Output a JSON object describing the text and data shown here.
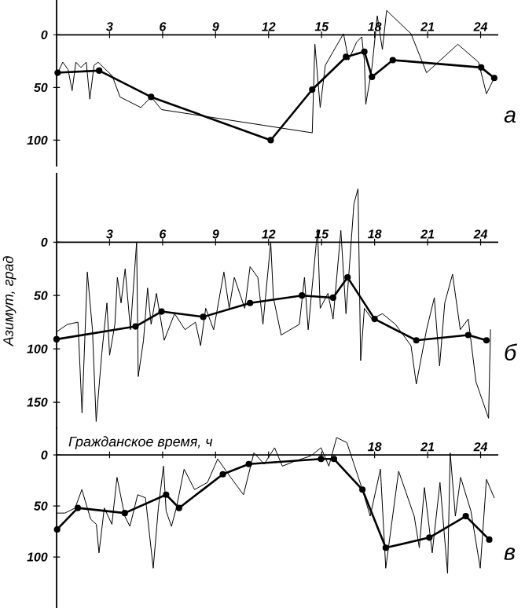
{
  "chart_data": [
    {
      "type": "line",
      "xlim": [
        0,
        25
      ],
      "ylim": [
        125,
        -33
      ],
      "xticks": [
        3,
        6,
        9,
        12,
        15,
        18,
        21,
        24
      ],
      "yticks": [
        0,
        50,
        100
      ],
      "annotations": [
        "а"
      ],
      "series": [
        {
          "color": "#000000",
          "marker": "none",
          "x": [
            0.06,
            0.35,
            0.65,
            0.88,
            1.09,
            1.38,
            1.68,
            1.88,
            2.12,
            2.35,
            3.15,
            3.59,
            4.77,
            5.35,
            5.94,
            14.47,
            14.62,
            14.92,
            15.21,
            15.65,
            16.24,
            16.53,
            16.98,
            17.27,
            17.42,
            17.5,
            17.85,
            18.15,
            18.44,
            18.68,
            20.06,
            20.94,
            22.71,
            23.88,
            24.33,
            24.77
          ],
          "values": [
            36,
            26,
            33,
            53,
            26,
            31,
            26,
            61,
            29,
            26,
            39,
            59,
            69,
            59,
            71,
            93,
            9,
            69,
            29,
            16,
            -1,
            24,
            7,
            2,
            24,
            66,
            31,
            -18,
            14,
            -23,
            -1,
            36,
            9,
            26,
            56,
            41
          ]
        },
        {
          "color": "#000000",
          "marker": "circle",
          "x": [
            0.06,
            2.41,
            5.35,
            12.12,
            14.47,
            16.38,
            17.42,
            17.85,
            19.03,
            24.03,
            24.77
          ],
          "values": [
            36,
            34,
            59,
            100,
            52,
            21,
            16,
            40,
            24,
            31,
            41
          ]
        }
      ]
    },
    {
      "type": "line",
      "xlim": [
        0,
        25
      ],
      "ylim": [
        175,
        -65
      ],
      "xticks": [
        3,
        6,
        9,
        12,
        15,
        18,
        21,
        24
      ],
      "yticks": [
        0,
        50,
        100,
        150
      ],
      "ylabel": "Азимут, град",
      "annotations": [
        "б"
      ],
      "series": [
        {
          "color": "#000000",
          "marker": "none",
          "x": [
            0,
            0.62,
            1.21,
            1.44,
            1.74,
            2.03,
            2.24,
            2.56,
            2.85,
            3.0,
            3.3,
            3.44,
            3.65,
            3.88,
            4.18,
            4.53,
            4.62,
            4.92,
            5.15,
            5.35,
            5.65,
            6.09,
            6.68,
            7.27,
            7.86,
            8.15,
            8.44,
            8.89,
            9.47,
            9.77,
            10.06,
            10.65,
            10.95,
            11.39,
            11.68,
            12.12,
            12.27,
            12.71,
            13.74,
            14.03,
            14.24,
            14.77,
            14.92,
            15.36,
            15.65,
            16.09,
            16.38,
            16.83,
            17.06,
            17.21,
            17.42,
            17.85,
            18.44,
            19.18,
            20.06,
            20.36,
            20.94,
            21.38,
            21.68,
            21.97,
            22.41,
            22.85,
            23.3,
            23.74,
            24.45,
            24.56
          ],
          "values": [
            84,
            77,
            75,
            160,
            28,
            82,
            168,
            104,
            57,
            106,
            77,
            33,
            57,
            25,
            82,
            0,
            126,
            92,
            43,
            77,
            48,
            92,
            67,
            82,
            75,
            97,
            62,
            82,
            28,
            62,
            33,
            62,
            23,
            33,
            77,
            0,
            52,
            87,
            77,
            33,
            82,
            -12,
            62,
            48,
            72,
            -11,
            67,
            -36,
            -50,
            111,
            62,
            72,
            67,
            77,
            97,
            133,
            82,
            52,
            116,
            57,
            30,
            82,
            72,
            131,
            165,
            82
          ]
        },
        {
          "color": "#000000",
          "marker": "circle",
          "x": [
            0,
            4.47,
            5.94,
            8.3,
            10.95,
            13.89,
            15.65,
            16.47,
            18.0,
            20.36,
            23.3,
            24.33
          ],
          "values": [
            91,
            79,
            65,
            70,
            57,
            50,
            52,
            33,
            72,
            92,
            87,
            92
          ]
        }
      ]
    },
    {
      "type": "line",
      "xlim": [
        0,
        25
      ],
      "ylim": [
        150,
        -27
      ],
      "xticks": [
        {
          "value": 3,
          "label": null
        },
        {
          "value": 6,
          "label": null
        },
        {
          "value": 9,
          "label": null
        },
        {
          "value": 12,
          "label": null
        },
        {
          "value": 15,
          "label": null
        },
        18,
        21,
        24
      ],
      "yticks": [
        0,
        50,
        100
      ],
      "xlabel": "Гражданское время, ч",
      "annotations": [
        "в"
      ],
      "series": [
        {
          "color": "#000000",
          "marker": "none",
          "x": [
            0.03,
            0.47,
            1.05,
            1.43,
            1.93,
            2.25,
            2.4,
            2.7,
            3.13,
            3.42,
            3.86,
            4.15,
            4.59,
            5.03,
            5.47,
            5.76,
            6.05,
            6.2,
            6.5,
            6.78,
            7.22,
            7.81,
            8.54,
            9.12,
            9.85,
            10.58,
            11.17,
            11.75,
            12.34,
            12.78,
            13.51,
            14.39,
            14.97,
            15.41,
            15.85,
            16.43,
            17.31,
            17.75,
            18.33,
            18.63,
            19.36,
            20.24,
            20.53,
            20.82,
            21.26,
            21.7,
            22.13,
            22.28,
            22.57,
            22.87,
            23.45,
            23.98,
            24.33,
            24.77
          ],
          "values": [
            57,
            57,
            52,
            34,
            63,
            68,
            96,
            52,
            68,
            22,
            60,
            70,
            39,
            42,
            111,
            52,
            11,
            55,
            70,
            52,
            14,
            34,
            27,
            4,
            22,
            39,
            -2,
            9,
            -7,
            11,
            6,
            1,
            -7,
            11,
            -17,
            -12,
            34,
            60,
            14,
            111,
            16,
            60,
            91,
            32,
            96,
            27,
            116,
            -2,
            60,
            22,
            55,
            111,
            24,
            42
          ]
        },
        {
          "color": "#000000",
          "marker": "circle",
          "x": [
            0.03,
            1.2,
            3.86,
            6.2,
            6.93,
            9.41,
            10.88,
            14.97,
            15.7,
            17.31,
            18.63,
            21.1,
            23.16,
            24.49
          ],
          "values": [
            73,
            52,
            57,
            39,
            52,
            19,
            9,
            4,
            4,
            34,
            91,
            81,
            60,
            83
          ]
        }
      ]
    }
  ]
}
